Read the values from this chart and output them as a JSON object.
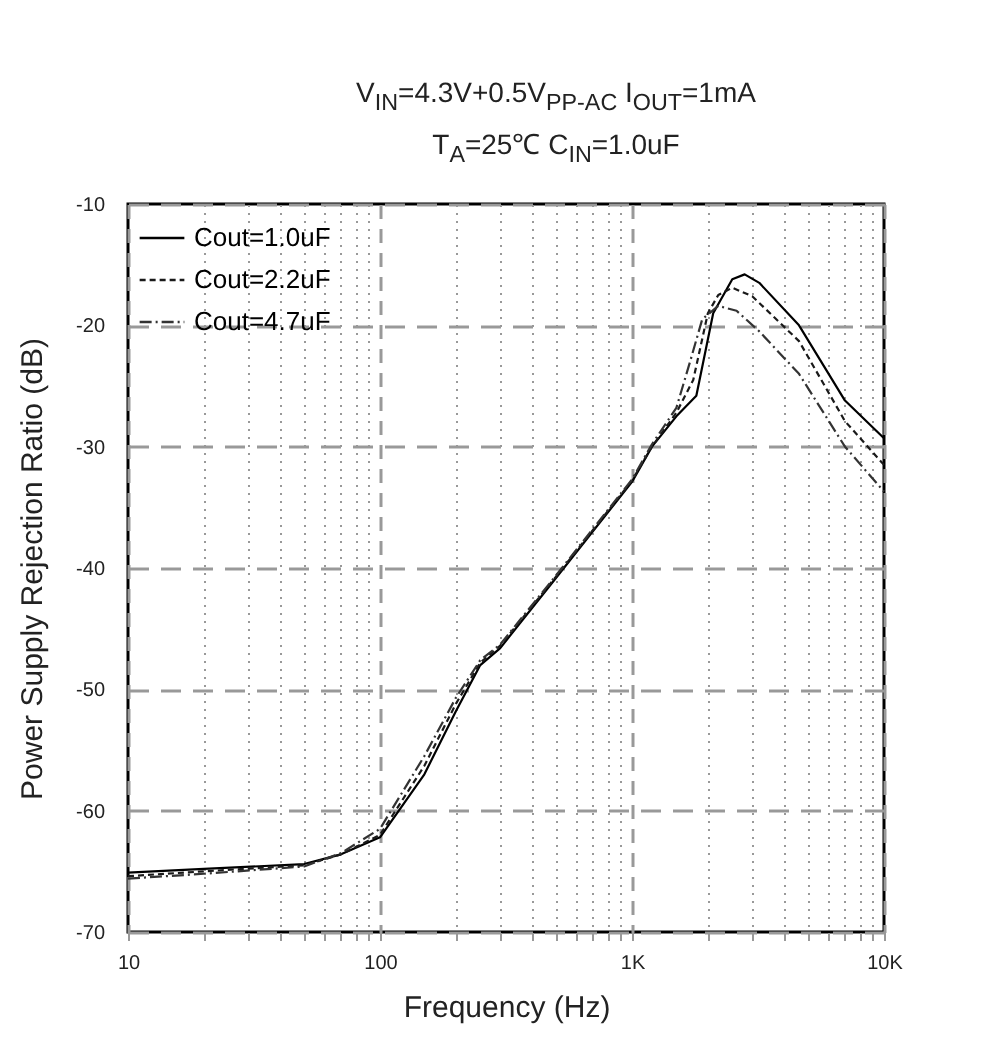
{
  "chart_data": {
    "type": "line",
    "subtitle": "V$_{IN}$=4.3V+0.5V$_{PP-AC}$ I$_{OUT}$=1mA\nT$_{A}$=25℃ C$_{IN}$=1.0uF",
    "xlabel": "Frequency (Hz)",
    "ylabel": "Power Supply Rejection Ratio (dB)",
    "log": "x",
    "xlim": [
      10,
      10000
    ],
    "ylim": [
      -70,
      -10
    ],
    "xticks": [
      10,
      {
        "value": 20,
        "label": null
      },
      {
        "value": 30,
        "label": null
      },
      {
        "value": 40,
        "label": null
      },
      {
        "value": 50,
        "label": null
      },
      {
        "value": 60,
        "label": null
      },
      {
        "value": 70,
        "label": null
      },
      {
        "value": 80,
        "label": null
      },
      {
        "value": 90,
        "label": null
      },
      100,
      {
        "value": 200,
        "label": null
      },
      {
        "value": 300,
        "label": null
      },
      {
        "value": 400,
        "label": null
      },
      {
        "value": 500,
        "label": null
      },
      {
        "value": 600,
        "label": null
      },
      {
        "value": 700,
        "label": null
      },
      {
        "value": 800,
        "label": null
      },
      {
        "value": 900,
        "label": null
      },
      {
        "value": 1000,
        "label": "1K"
      },
      {
        "value": 2000,
        "label": null
      },
      {
        "value": 3000,
        "label": null
      },
      {
        "value": 4000,
        "label": null
      },
      {
        "value": 5000,
        "label": null
      },
      {
        "value": 6000,
        "label": null
      },
      {
        "value": 7000,
        "label": null
      },
      {
        "value": 8000,
        "label": null
      },
      {
        "value": 9000,
        "label": null
      },
      {
        "value": 10000,
        "label": "10K"
      }
    ],
    "yticks": [
      -70,
      -60,
      -50,
      -40,
      -30,
      -20,
      -10
    ],
    "grid": true,
    "legend": "top left",
    "marker": "none",
    "series": [
      {
        "name": "Cout=1.0uF",
        "color": "#000000",
        "line_style": "solid",
        "x": [
          10,
          20,
          50,
          70,
          100,
          150,
          200,
          250,
          300,
          500,
          1000,
          1200,
          1500,
          1800,
          2100,
          2500,
          2800,
          3200,
          4600,
          7000,
          10000
        ],
        "values": [
          -65.1,
          -64.8,
          -64.4,
          -63.6,
          -62.2,
          -57,
          -51.8,
          -48,
          -46.6,
          -40.8,
          -32.9,
          -30,
          -27.5,
          -25.8,
          -19,
          -16.2,
          -15.8,
          -16.5,
          -20,
          -26.2,
          -29.3
        ]
      },
      {
        "name": "Cout=2.2uF",
        "color": "#1a1a1a",
        "line_style": "dashed",
        "x": [
          10,
          20,
          50,
          70,
          100,
          150,
          200,
          250,
          300,
          500,
          1000,
          1200,
          1500,
          1750,
          2000,
          2200,
          2500,
          3000,
          4600,
          7000,
          10000
        ],
        "values": [
          -65.4,
          -65,
          -64.5,
          -63.6,
          -62,
          -56.3,
          -51.2,
          -47.8,
          -46.4,
          -40.7,
          -32.8,
          -30,
          -27.2,
          -24.5,
          -19,
          -17.5,
          -16.9,
          -17.6,
          -21.3,
          -27.9,
          -31.5
        ]
      },
      {
        "name": "Cout=4.7uF",
        "color": "#333333",
        "line_style": "dashed",
        "x": [
          10,
          20,
          50,
          70,
          100,
          150,
          200,
          250,
          300,
          500,
          1000,
          1200,
          1500,
          1700,
          1900,
          2200,
          2600,
          3200,
          4600,
          7000,
          10000
        ],
        "values": [
          -65.6,
          -65.2,
          -64.6,
          -63.5,
          -61.5,
          -55.5,
          -50.7,
          -47.6,
          -46.3,
          -40.6,
          -32.7,
          -29.8,
          -26.8,
          -23,
          -19.5,
          -18.4,
          -18.8,
          -20.5,
          -24,
          -30,
          -33.7
        ]
      }
    ]
  }
}
